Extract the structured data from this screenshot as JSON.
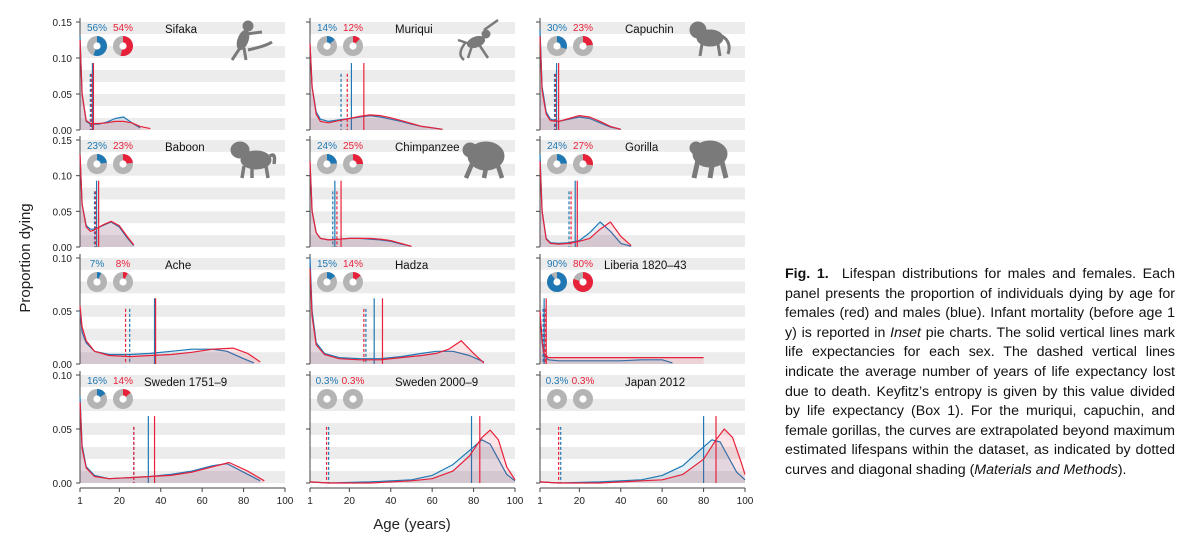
{
  "colors": {
    "female": "#e8213a",
    "male": "#1f78b4",
    "band": "#ececec",
    "inf_bg": "#b4b4b4",
    "silhouette": "#7a7a7a"
  },
  "axis": {
    "ylabel": "Proportion dying",
    "xlabel": "Age (years)"
  },
  "chart_data": {
    "type": "line",
    "title": "Lifespan distributions for males and females",
    "xlabel": "Age (years)",
    "ylabel": "Proportion dying",
    "xlim": [
      0,
      100
    ],
    "x_ticks": [
      "1",
      "20",
      "40",
      "60",
      "80",
      "100"
    ],
    "legend": "female (red), male (blue)",
    "panels": [
      {
        "name": "Sifaka",
        "infant_m": "56%",
        "infant_f": "54%",
        "infant_m_frac": 0.56,
        "infant_f_frac": 0.54,
        "ymax": 0.15,
        "yticks": [
          "0.00",
          "0.05",
          "0.10",
          "0.15"
        ],
        "ytick_values": [
          0,
          0.05,
          0.1,
          0.15
        ],
        "male": {
          "x": [
            1,
            2,
            4,
            6,
            10,
            14,
            18,
            22,
            26,
            30
          ],
          "y": [
            0.13,
            0.05,
            0.012,
            0.008,
            0.008,
            0.011,
            0.016,
            0.018,
            0.01,
            0.003
          ],
          "le": 7,
          "dash": 6
        },
        "female": {
          "x": [
            1,
            2,
            4,
            6,
            10,
            14,
            18,
            22,
            26,
            30,
            35
          ],
          "y": [
            0.125,
            0.05,
            0.013,
            0.009,
            0.009,
            0.01,
            0.012,
            0.012,
            0.01,
            0.005,
            0.002
          ],
          "le": 7.5,
          "dash": 6.5
        },
        "animal": "lemur-silhouette-icon"
      },
      {
        "name": "Muriqui",
        "infant_m": "14%",
        "infant_f": "12%",
        "infant_m_frac": 0.14,
        "infant_f_frac": 0.12,
        "ymax": 0.15,
        "yticks": [
          "0.00",
          "0.05",
          "0.10",
          "0.15"
        ],
        "ytick_values": [
          0,
          0.05,
          0.1,
          0.15
        ],
        "male": {
          "x": [
            1,
            2,
            4,
            6,
            10,
            15,
            20,
            25,
            30,
            35,
            40,
            45,
            50,
            55,
            60,
            65
          ],
          "y": [
            0.12,
            0.06,
            0.025,
            0.015,
            0.012,
            0.014,
            0.016,
            0.018,
            0.02,
            0.018,
            0.015,
            0.012,
            0.008,
            0.005,
            0.003,
            0.001
          ],
          "le": 21,
          "dash": 16
        },
        "female": {
          "x": [
            1,
            2,
            4,
            6,
            10,
            15,
            20,
            25,
            30,
            35,
            40,
            45,
            50,
            55,
            60,
            65
          ],
          "y": [
            0.12,
            0.06,
            0.022,
            0.012,
            0.01,
            0.013,
            0.016,
            0.019,
            0.021,
            0.02,
            0.017,
            0.013,
            0.009,
            0.005,
            0.003,
            0.001
          ],
          "le": 27,
          "dash": 19
        },
        "animal": "spider-monkey-silhouette-icon"
      },
      {
        "name": "Capuchin",
        "infant_m": "30%",
        "infant_f": "23%",
        "infant_m_frac": 0.3,
        "infant_f_frac": 0.23,
        "ymax": 0.15,
        "yticks": [
          "0.00",
          "0.05",
          "0.10",
          "0.15"
        ],
        "ytick_values": [
          0,
          0.05,
          0.1,
          0.15
        ],
        "male": {
          "x": [
            1,
            2,
            4,
            6,
            10,
            15,
            20,
            25,
            30,
            35,
            40
          ],
          "y": [
            0.14,
            0.06,
            0.025,
            0.015,
            0.012,
            0.015,
            0.018,
            0.016,
            0.01,
            0.004,
            0.001
          ],
          "le": 9,
          "dash": 8
        },
        "female": {
          "x": [
            1,
            2,
            4,
            6,
            10,
            15,
            20,
            25,
            30,
            35,
            40
          ],
          "y": [
            0.13,
            0.055,
            0.022,
            0.013,
            0.012,
            0.016,
            0.02,
            0.018,
            0.012,
            0.005,
            0.001
          ],
          "le": 10,
          "dash": 8.5
        },
        "animal": "capuchin-silhouette-icon"
      },
      {
        "name": "Baboon",
        "infant_m": "23%",
        "infant_f": "23%",
        "infant_m_frac": 0.23,
        "infant_f_frac": 0.23,
        "ymax": 0.15,
        "yticks": [
          "0.00",
          "0.05",
          "0.10",
          "0.15"
        ],
        "ytick_values": [
          0,
          0.05,
          0.1,
          0.15
        ],
        "male": {
          "x": [
            1,
            2,
            4,
            6,
            8,
            12,
            16,
            20,
            24,
            27
          ],
          "y": [
            0.13,
            0.06,
            0.03,
            0.025,
            0.025,
            0.03,
            0.035,
            0.028,
            0.012,
            0.002
          ],
          "le": 9,
          "dash": 8
        },
        "female": {
          "x": [
            1,
            2,
            4,
            6,
            8,
            12,
            16,
            20,
            24,
            27
          ],
          "y": [
            0.13,
            0.06,
            0.028,
            0.022,
            0.024,
            0.031,
            0.036,
            0.03,
            0.014,
            0.003
          ],
          "le": 10,
          "dash": 8.5
        },
        "animal": "baboon-silhouette-icon"
      },
      {
        "name": "Chimpanzee",
        "infant_m": "24%",
        "infant_f": "25%",
        "infant_m_frac": 0.24,
        "infant_f_frac": 0.25,
        "ymax": 0.15,
        "yticks": [
          "0.00",
          "0.05",
          "0.10",
          "0.15"
        ],
        "ytick_values": [
          0,
          0.05,
          0.1,
          0.15
        ],
        "male": {
          "x": [
            1,
            2,
            4,
            6,
            10,
            15,
            20,
            25,
            30,
            35,
            40,
            45,
            50
          ],
          "y": [
            0.12,
            0.05,
            0.02,
            0.012,
            0.01,
            0.011,
            0.012,
            0.012,
            0.011,
            0.01,
            0.008,
            0.004,
            0.001
          ],
          "le": 13,
          "dash": 12
        },
        "female": {
          "x": [
            1,
            2,
            4,
            6,
            10,
            15,
            20,
            25,
            30,
            35,
            40,
            45,
            50
          ],
          "y": [
            0.12,
            0.05,
            0.02,
            0.012,
            0.01,
            0.011,
            0.012,
            0.012,
            0.012,
            0.011,
            0.009,
            0.005,
            0.001
          ],
          "le": 16,
          "dash": 14
        },
        "animal": "chimpanzee-silhouette-icon"
      },
      {
        "name": "Gorilla",
        "infant_m": "24%",
        "infant_f": "27%",
        "infant_m_frac": 0.24,
        "infant_f_frac": 0.27,
        "ymax": 0.15,
        "yticks": [
          "0.00",
          "0.05",
          "0.10",
          "0.15"
        ],
        "ytick_values": [
          0,
          0.05,
          0.1,
          0.15
        ],
        "male": {
          "x": [
            1,
            2,
            4,
            6,
            10,
            15,
            20,
            25,
            30,
            35,
            40,
            45
          ],
          "y": [
            0.13,
            0.05,
            0.012,
            0.006,
            0.005,
            0.006,
            0.009,
            0.02,
            0.035,
            0.022,
            0.005,
            0.001
          ],
          "le": 18,
          "dash": 15
        },
        "female": {
          "x": [
            1,
            2,
            4,
            6,
            10,
            15,
            20,
            25,
            30,
            35,
            40,
            45
          ],
          "y": [
            0.12,
            0.05,
            0.011,
            0.005,
            0.004,
            0.005,
            0.008,
            0.012,
            0.025,
            0.035,
            0.015,
            0.002
          ],
          "le": 19,
          "dash": 16
        },
        "animal": "gorilla-silhouette-icon"
      },
      {
        "name": "Ache",
        "infant_m": "7%",
        "infant_f": "8%",
        "infant_m_frac": 0.07,
        "infant_f_frac": 0.08,
        "ymax": 0.1,
        "yticks": [
          "0.00",
          "0.05",
          "0.10"
        ],
        "ytick_values": [
          0,
          0.05,
          0.1
        ],
        "male": {
          "x": [
            1,
            2,
            4,
            8,
            15,
            25,
            35,
            45,
            55,
            65,
            72,
            80,
            85
          ],
          "y": [
            0.05,
            0.03,
            0.02,
            0.012,
            0.009,
            0.009,
            0.01,
            0.012,
            0.014,
            0.014,
            0.012,
            0.005,
            0.001
          ],
          "le": 37,
          "dash": 25
        },
        "female": {
          "x": [
            1,
            2,
            4,
            8,
            15,
            25,
            35,
            45,
            55,
            65,
            75,
            82,
            88
          ],
          "y": [
            0.055,
            0.035,
            0.022,
            0.012,
            0.008,
            0.007,
            0.008,
            0.009,
            0.011,
            0.014,
            0.015,
            0.01,
            0.002
          ],
          "le": 37.5,
          "dash": 23
        }
      },
      {
        "name": "Hadza",
        "infant_m": "15%",
        "infant_f": "14%",
        "infant_m_frac": 0.15,
        "infant_f_frac": 0.14,
        "ymax": 0.1,
        "yticks": [
          "0.00",
          "0.05",
          "0.10"
        ],
        "ytick_values": [
          0,
          0.05,
          0.1
        ],
        "male": {
          "x": [
            1,
            2,
            4,
            8,
            15,
            25,
            35,
            45,
            55,
            62,
            70,
            78,
            85
          ],
          "y": [
            0.1,
            0.05,
            0.02,
            0.01,
            0.006,
            0.005,
            0.005,
            0.007,
            0.01,
            0.012,
            0.012,
            0.008,
            0.002
          ],
          "le": 32,
          "dash": 28
        },
        "female": {
          "x": [
            1,
            2,
            4,
            8,
            15,
            25,
            35,
            45,
            55,
            62,
            68,
            74,
            80,
            85
          ],
          "y": [
            0.09,
            0.045,
            0.018,
            0.009,
            0.005,
            0.004,
            0.004,
            0.006,
            0.008,
            0.01,
            0.014,
            0.022,
            0.01,
            0.001
          ],
          "le": 36,
          "dash": 27
        }
      },
      {
        "name": "Liberia 1820–43",
        "infant_m": "90%",
        "infant_f": "80%",
        "infant_m_frac": 0.9,
        "infant_f_frac": 0.8,
        "ymax": 0.1,
        "yticks": [
          "0.00",
          "0.05",
          "0.10"
        ],
        "ytick_values": [
          0,
          0.05,
          0.1
        ],
        "male": {
          "x": [
            1,
            2,
            3,
            5,
            10,
            20,
            30,
            40,
            50,
            60,
            65
          ],
          "y": [
            0.05,
            0.02,
            0.008,
            0.004,
            0.003,
            0.003,
            0.003,
            0.003,
            0.004,
            0.004,
            0.001
          ],
          "le": 3,
          "dash": 2.5
        },
        "female": {
          "x": [
            1,
            2,
            3,
            5,
            10,
            20,
            30,
            40,
            50,
            60,
            70,
            80
          ],
          "y": [
            0.05,
            0.022,
            0.01,
            0.006,
            0.006,
            0.006,
            0.006,
            0.006,
            0.006,
            0.006,
            0.006,
            0.006
          ],
          "le": 4,
          "dash": 3.5
        }
      },
      {
        "name": "Sweden 1751–9",
        "infant_m": "16%",
        "infant_f": "14%",
        "infant_m_frac": 0.16,
        "infant_f_frac": 0.14,
        "ymax": 0.1,
        "yticks": [
          "0.00",
          "0.05",
          "0.10"
        ],
        "ytick_values": [
          0,
          0.05,
          0.1
        ],
        "male": {
          "x": [
            1,
            2,
            4,
            8,
            15,
            25,
            35,
            45,
            55,
            65,
            72,
            80,
            88
          ],
          "y": [
            0.08,
            0.035,
            0.015,
            0.007,
            0.004,
            0.005,
            0.006,
            0.008,
            0.011,
            0.016,
            0.018,
            0.01,
            0.002
          ],
          "le": 34,
          "dash": 27
        },
        "female": {
          "x": [
            1,
            2,
            4,
            8,
            15,
            25,
            35,
            45,
            55,
            65,
            73,
            82,
            90
          ],
          "y": [
            0.075,
            0.032,
            0.014,
            0.006,
            0.004,
            0.005,
            0.006,
            0.007,
            0.01,
            0.015,
            0.019,
            0.011,
            0.002
          ],
          "le": 37,
          "dash": 27
        }
      },
      {
        "name": "Sweden 2000–9",
        "infant_m": "0.3%",
        "infant_f": "0.3%",
        "infant_m_frac": 0.003,
        "infant_f_frac": 0.003,
        "ymax": 0.1,
        "yticks": [
          "0.00",
          "0.05",
          "0.10"
        ],
        "ytick_values": [
          0,
          0.05,
          0.1
        ],
        "male": {
          "x": [
            1,
            10,
            30,
            50,
            60,
            70,
            78,
            84,
            88,
            92,
            96,
            100
          ],
          "y": [
            0.001,
            0.0,
            0.001,
            0.003,
            0.007,
            0.017,
            0.03,
            0.04,
            0.036,
            0.022,
            0.008,
            0.002
          ],
          "le": 79,
          "dash": 10
        },
        "female": {
          "x": [
            1,
            10,
            30,
            50,
            60,
            70,
            78,
            84,
            88,
            92,
            96,
            100
          ],
          "y": [
            0.001,
            0.0,
            0.0,
            0.002,
            0.004,
            0.011,
            0.025,
            0.042,
            0.049,
            0.04,
            0.015,
            0.003
          ],
          "le": 83,
          "dash": 9
        }
      },
      {
        "name": "Japan 2012",
        "infant_m": "0.3%",
        "infant_f": "0.3%",
        "infant_m_frac": 0.003,
        "infant_f_frac": 0.003,
        "ymax": 0.1,
        "yticks": [
          "0.00",
          "0.05",
          "0.10"
        ],
        "ytick_values": [
          0,
          0.05,
          0.1
        ],
        "male": {
          "x": [
            1,
            10,
            30,
            50,
            60,
            70,
            78,
            84,
            88,
            92,
            96,
            100
          ],
          "y": [
            0.001,
            0.0,
            0.001,
            0.003,
            0.007,
            0.016,
            0.03,
            0.04,
            0.038,
            0.024,
            0.01,
            0.003
          ],
          "le": 80,
          "dash": 11
        },
        "female": {
          "x": [
            1,
            10,
            30,
            50,
            60,
            70,
            80,
            86,
            90,
            94,
            98,
            100
          ],
          "y": [
            0.001,
            0.0,
            0.0,
            0.002,
            0.003,
            0.008,
            0.022,
            0.04,
            0.05,
            0.042,
            0.02,
            0.008
          ],
          "le": 86,
          "dash": 10
        }
      }
    ]
  },
  "caption": {
    "label": "Fig. 1.",
    "part1": "Lifespan distributions for males and females. Each panel presents the proportion of individuals dying by age for females (red) and males (blue). Infant mortality (before age 1 y) is reported in ",
    "inset": "Inset",
    "part2": " pie charts. The solid vertical lines mark life expectancies for each sex. The dashed vertical lines indicate the average number of years of life expectancy lost due to death. Keyfitz’s entropy is given by this value divided by life expectancy (Box 1). For the muriqui, capuchin, and female gorillas, the curves are extrapolated beyond maximum estimated lifespans within the dataset, as indicated by dotted curves and diagonal shading (",
    "methods": "Materials and Methods",
    "part3": ")."
  }
}
